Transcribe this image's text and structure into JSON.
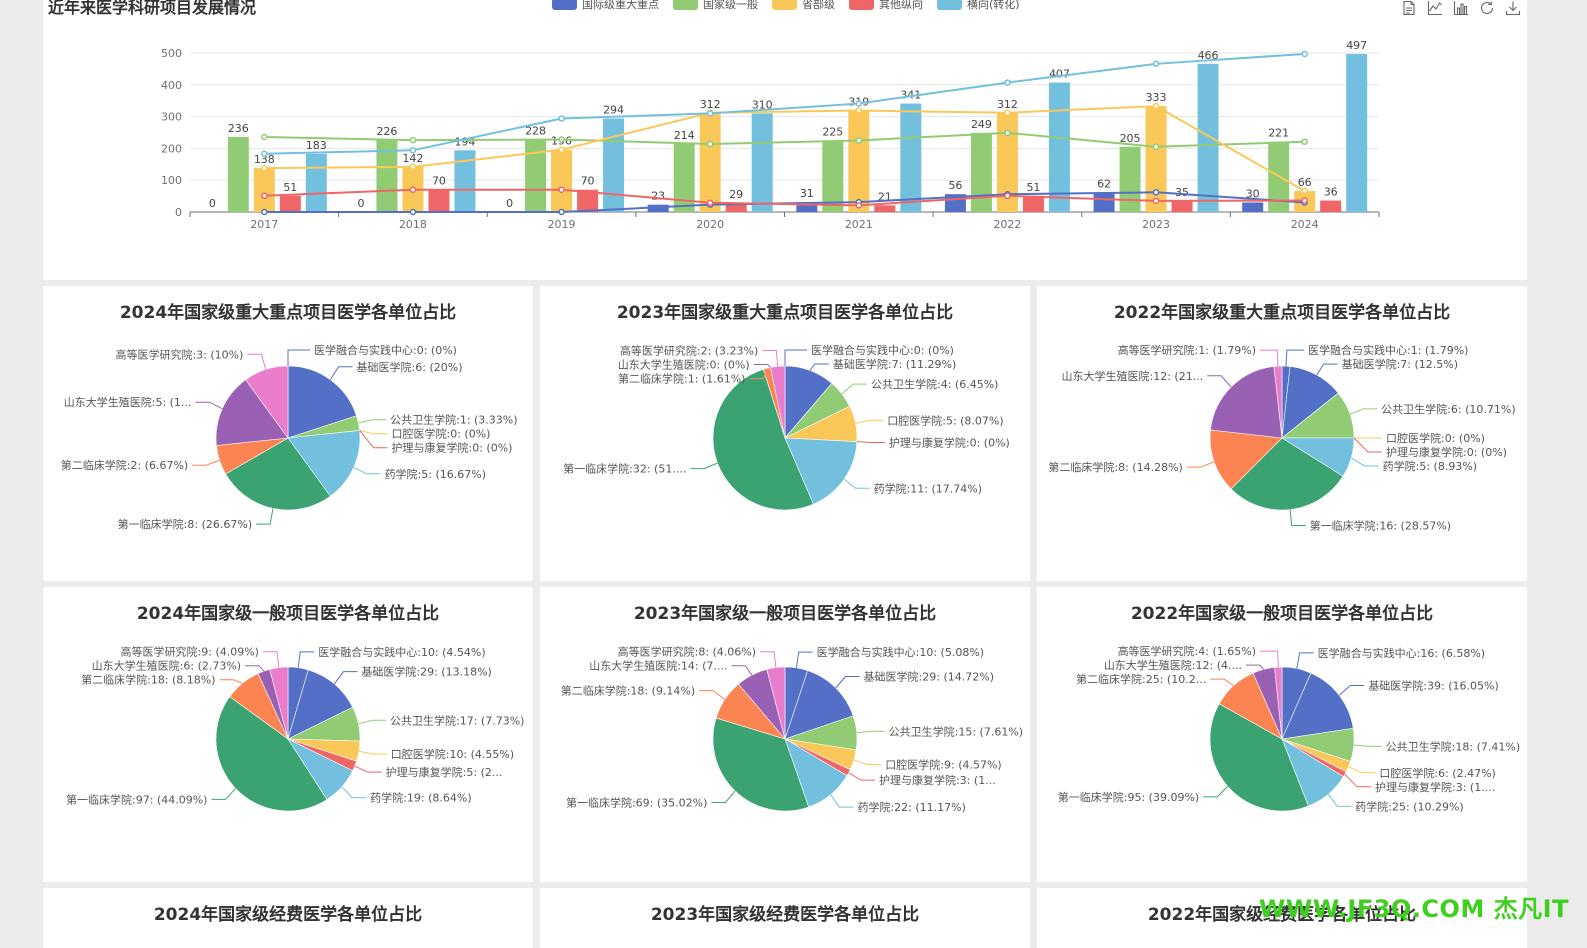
{
  "top": {
    "title": "近年来医学科研项目发展情况"
  },
  "colors": {
    "blue": "#5470c6",
    "green": "#91cc75",
    "yellow": "#fac858",
    "red": "#ee6666",
    "cyan": "#73c0de",
    "darkgreen": "#3ba272",
    "orange": "#fc8452",
    "purple": "#9a60b4",
    "pink": "#ea7ccc"
  },
  "toolbox": [
    "data-view-icon",
    "line-chart-icon",
    "bar-chart-icon",
    "restore-icon",
    "save-image-icon"
  ],
  "chart_data": [
    {
      "type": "bar",
      "title": "近年来医学科研项目发展情况",
      "categories": [
        "2017",
        "2018",
        "2019",
        "2020",
        "2021",
        "2022",
        "2023",
        "2024"
      ],
      "ylim": [
        0,
        500
      ],
      "yticks": [
        0,
        100,
        200,
        300,
        400,
        500
      ],
      "grid": true,
      "legend_position": "top",
      "series": [
        {
          "name": "国际级重大重点",
          "color": "#5470c6",
          "values": [
            0,
            0,
            0,
            23,
            31,
            56,
            62,
            30
          ]
        },
        {
          "name": "国家级一般",
          "color": "#91cc75",
          "values": [
            236,
            226,
            228,
            214,
            225,
            249,
            205,
            221
          ]
        },
        {
          "name": "省部级",
          "color": "#fac858",
          "values": [
            138,
            142,
            196,
            312,
            319,
            312,
            333,
            66
          ]
        },
        {
          "name": "其他纵向",
          "color": "#ee6666",
          "values": [
            51,
            70,
            70,
            29,
            21,
            51,
            35,
            36
          ]
        },
        {
          "name": "横向(转化)",
          "color": "#73c0de",
          "values": [
            183,
            194,
            294,
            310,
            341,
            407,
            466,
            497
          ]
        }
      ]
    },
    {
      "type": "pie",
      "title": "2024年国家级重大重点项目医学各单位占比",
      "slices": [
        {
          "label": "医学融合与实践中心:0: (0%)",
          "value": 0,
          "color": "#5470c6"
        },
        {
          "label": "基础医学院:6: (20%)",
          "value": 6,
          "color": "#5470c6"
        },
        {
          "label": "公共卫生学院:1: (3.33%)",
          "value": 1,
          "color": "#91cc75"
        },
        {
          "label": "口腔医学院:0: (0%)",
          "value": 0,
          "color": "#fac858"
        },
        {
          "label": "护理与康复学院:0: (0%)",
          "value": 0,
          "color": "#ee6666"
        },
        {
          "label": "药学院:5: (16.67%)",
          "value": 5,
          "color": "#73c0de"
        },
        {
          "label": "第一临床学院:8: (26.67%)",
          "value": 8,
          "color": "#3ba272"
        },
        {
          "label": "第二临床学院:2: (6.67%)",
          "value": 2,
          "color": "#fc8452"
        },
        {
          "label": "山东大学生殖医院:5: (1...",
          "value": 5,
          "color": "#9a60b4"
        },
        {
          "label": "高等医学研究院:3: (10%)",
          "value": 3,
          "color": "#ea7ccc"
        }
      ]
    },
    {
      "type": "pie",
      "title": "2023年国家级重大重点项目医学各单位占比",
      "slices": [
        {
          "label": "医学融合与实践中心:0: (0%)",
          "value": 0,
          "color": "#5470c6"
        },
        {
          "label": "基础医学院:7: (11.29%)",
          "value": 7,
          "color": "#5470c6"
        },
        {
          "label": "公共卫生学院:4: (6.45%)",
          "value": 4,
          "color": "#91cc75"
        },
        {
          "label": "口腔医学院:5: (8.07%)",
          "value": 5,
          "color": "#fac858"
        },
        {
          "label": "护理与康复学院:0: (0%)",
          "value": 0,
          "color": "#ee6666"
        },
        {
          "label": "药学院:11: (17.74%)",
          "value": 11,
          "color": "#73c0de"
        },
        {
          "label": "第一临床学院:32: (51....",
          "value": 32,
          "color": "#3ba272"
        },
        {
          "label": "第二临床学院:1: (1.61%)",
          "value": 1,
          "color": "#fc8452"
        },
        {
          "label": "山东大学生殖医院:0: (0%)",
          "value": 0,
          "color": "#9a60b4"
        },
        {
          "label": "高等医学研究院:2: (3.23%)",
          "value": 2,
          "color": "#ea7ccc"
        }
      ]
    },
    {
      "type": "pie",
      "title": "2022年国家级重大重点项目医学各单位占比",
      "slices": [
        {
          "label": "医学融合与实践中心:1: (1.79%)",
          "value": 1,
          "color": "#5470c6"
        },
        {
          "label": "基础医学院:7: (12.5%)",
          "value": 7,
          "color": "#5470c6"
        },
        {
          "label": "公共卫生学院:6: (10.71%)",
          "value": 6,
          "color": "#91cc75"
        },
        {
          "label": "口腔医学院:0: (0%)",
          "value": 0,
          "color": "#fac858"
        },
        {
          "label": "护理与康复学院:0: (0%)",
          "value": 0,
          "color": "#ee6666"
        },
        {
          "label": "药学院:5: (8.93%)",
          "value": 5,
          "color": "#73c0de"
        },
        {
          "label": "第一临床学院:16: (28.57%)",
          "value": 16,
          "color": "#3ba272"
        },
        {
          "label": "第二临床学院:8: (14.28%)",
          "value": 8,
          "color": "#fc8452"
        },
        {
          "label": "山东大学生殖医院:12: (21...",
          "value": 12,
          "color": "#9a60b4"
        },
        {
          "label": "高等医学研究院:1: (1.79%)",
          "value": 1,
          "color": "#ea7ccc"
        }
      ]
    },
    {
      "type": "pie",
      "title": "2024年国家级一般项目医学各单位占比",
      "slices": [
        {
          "label": "医学融合与实践中心:10: (4.54%)",
          "value": 10,
          "color": "#5470c6"
        },
        {
          "label": "基础医学院:29: (13.18%)",
          "value": 29,
          "color": "#5470c6"
        },
        {
          "label": "公共卫生学院:17: (7.73%)",
          "value": 17,
          "color": "#91cc75"
        },
        {
          "label": "口腔医学院:10: (4.55%)",
          "value": 10,
          "color": "#fac858"
        },
        {
          "label": "护理与康复学院:5: (2...",
          "value": 5,
          "color": "#ee6666"
        },
        {
          "label": "药学院:19: (8.64%)",
          "value": 19,
          "color": "#73c0de"
        },
        {
          "label": "第一临床学院:97: (44.09%)",
          "value": 97,
          "color": "#3ba272"
        },
        {
          "label": "第二临床学院:18: (8.18%)",
          "value": 18,
          "color": "#fc8452"
        },
        {
          "label": "山东大学生殖医院:6: (2.73%)",
          "value": 6,
          "color": "#9a60b4"
        },
        {
          "label": "高等医学研究院:9: (4.09%)",
          "value": 9,
          "color": "#ea7ccc"
        }
      ]
    },
    {
      "type": "pie",
      "title": "2023年国家级一般项目医学各单位占比",
      "slices": [
        {
          "label": "医学融合与实践中心:10: (5.08%)",
          "value": 10,
          "color": "#5470c6"
        },
        {
          "label": "基础医学院:29: (14.72%)",
          "value": 29,
          "color": "#5470c6"
        },
        {
          "label": "公共卫生学院:15: (7.61%)",
          "value": 15,
          "color": "#91cc75"
        },
        {
          "label": "口腔医学院:9: (4.57%)",
          "value": 9,
          "color": "#fac858"
        },
        {
          "label": "护理与康复学院:3: (1...",
          "value": 3,
          "color": "#ee6666"
        },
        {
          "label": "药学院:22: (11.17%)",
          "value": 22,
          "color": "#73c0de"
        },
        {
          "label": "第一临床学院:69: (35.02%)",
          "value": 69,
          "color": "#3ba272"
        },
        {
          "label": "第二临床学院:18: (9.14%)",
          "value": 18,
          "color": "#fc8452"
        },
        {
          "label": "山东大学生殖医院:14: (7....",
          "value": 14,
          "color": "#9a60b4"
        },
        {
          "label": "高等医学研究院:8: (4.06%)",
          "value": 8,
          "color": "#ea7ccc"
        }
      ]
    },
    {
      "type": "pie",
      "title": "2022年国家级一般项目医学各单位占比",
      "slices": [
        {
          "label": "医学融合与实践中心:16: (6.58%)",
          "value": 16,
          "color": "#5470c6"
        },
        {
          "label": "基础医学院:39: (16.05%)",
          "value": 39,
          "color": "#5470c6"
        },
        {
          "label": "公共卫生学院:18: (7.41%)",
          "value": 18,
          "color": "#91cc75"
        },
        {
          "label": "口腔医学院:6: (2.47%)",
          "value": 6,
          "color": "#fac858"
        },
        {
          "label": "护理与康复学院:3: (1....",
          "value": 3,
          "color": "#ee6666"
        },
        {
          "label": "药学院:25: (10.29%)",
          "value": 25,
          "color": "#73c0de"
        },
        {
          "label": "第一临床学院:95: (39.09%)",
          "value": 95,
          "color": "#3ba272"
        },
        {
          "label": "第二临床学院:25: (10.2...",
          "value": 25,
          "color": "#fc8452"
        },
        {
          "label": "山东大学生殖医院:12: (4....",
          "value": 12,
          "color": "#9a60b4"
        },
        {
          "label": "高等医学研究院:4: (1.65%)",
          "value": 4,
          "color": "#ea7ccc"
        }
      ]
    }
  ],
  "bottom_titles": [
    "2024年国家级经费医学各单位占比",
    "2023年国家级经费医学各单位占比",
    "2022年国家级经费医学各单位占比"
  ],
  "watermark": "WWW.JF3Q.COM 杰凡IT"
}
